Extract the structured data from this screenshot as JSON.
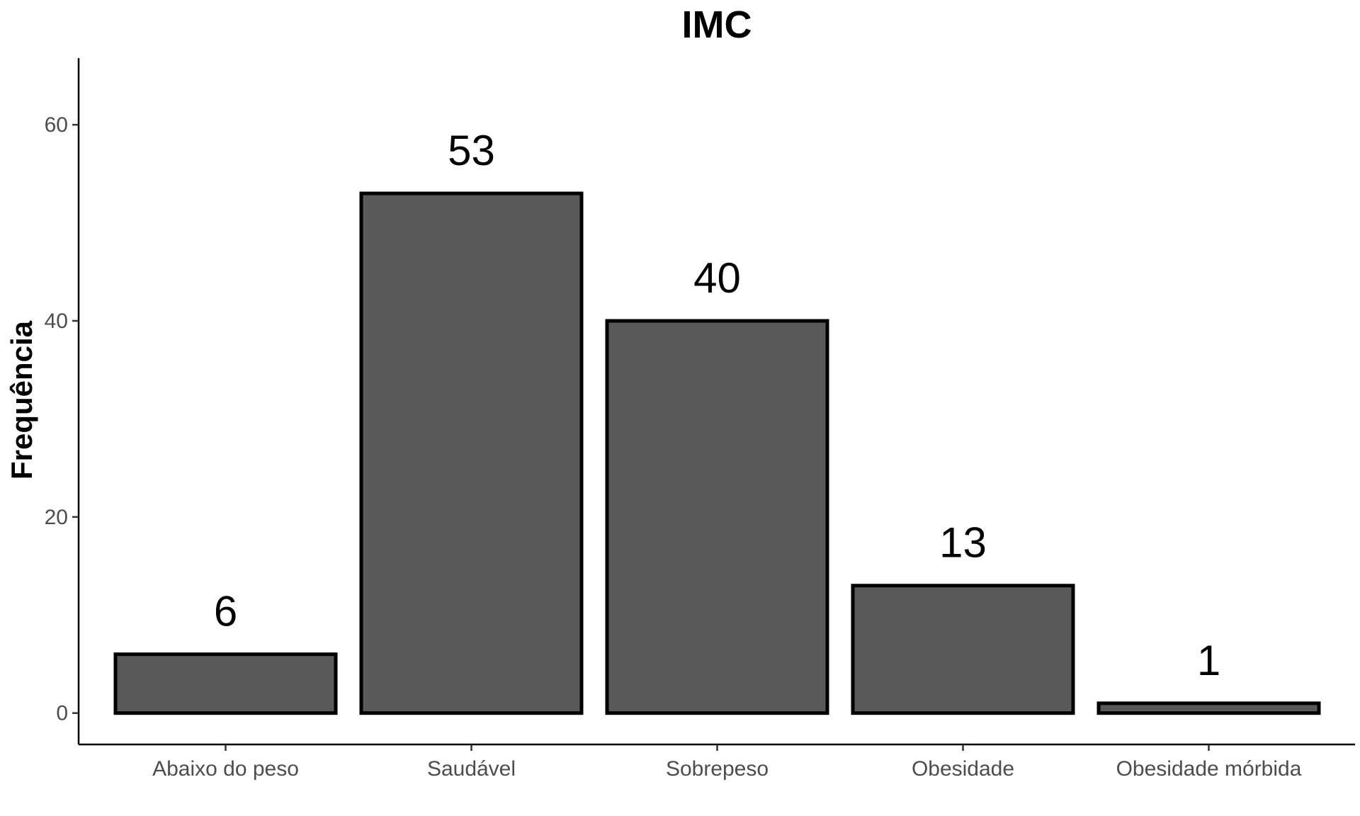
{
  "chart_data": {
    "type": "bar",
    "title": "IMC",
    "xlabel": "",
    "ylabel": "Frequência",
    "categories": [
      "Abaixo do peso",
      "Saudável",
      "Sobrepeso",
      "Obesidade",
      "Obesidade mórbida"
    ],
    "values": [
      6,
      53,
      40,
      13,
      1
    ],
    "data_labels": [
      "6",
      "53",
      "40",
      "13",
      "1"
    ],
    "yticks": [
      0,
      20,
      40,
      60
    ],
    "ytick_labels": [
      "0",
      "20",
      "40",
      "60"
    ],
    "ylim": [
      -3.2,
      66.8
    ],
    "grid": false,
    "legend": "none",
    "colors": {
      "bar_fill": "#595959",
      "bar_stroke": "#000000",
      "tick_label": "#4d4d4d"
    }
  }
}
